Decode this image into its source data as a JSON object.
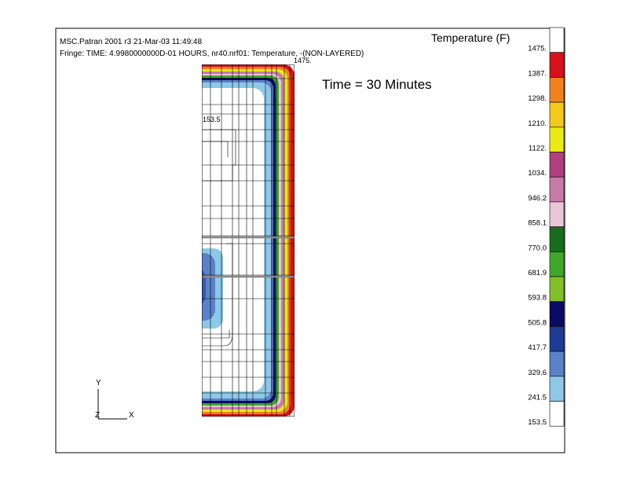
{
  "header": {
    "line1": "MSC.Patran 2001 r3 21-Mar-03 11:49:48",
    "line2": "Fringe: TIME:    4.9980000000D-01 HOURS, nr40.nrf01: Temperature, -(NON-LAYERED)"
  },
  "annotation": "Time = 30 Minutes",
  "max_label": "1475.",
  "min_label": "153.5",
  "triad": {
    "y": "Y",
    "z": "Z",
    "x": "X"
  },
  "legend": {
    "title": "Temperature (F)",
    "labels": [
      "1475.",
      "1387.",
      "1298.",
      "1210.",
      "1122.",
      "1034.",
      "946.2",
      "858.1",
      "770.0",
      "681.9",
      "593.8",
      "505.8",
      "417.7",
      "329.6",
      "241.5",
      "153.5"
    ],
    "colors": [
      "#ffffff",
      "#d7101a",
      "#f0821e",
      "#f4c81c",
      "#eaea14",
      "#b0407e",
      "#c77ba7",
      "#ebc6d8",
      "#196e1e",
      "#3ea82a",
      "#82c02a",
      "#0a0a64",
      "#1e3c96",
      "#5a82c8",
      "#8ec8e6",
      "#ffffff"
    ]
  }
}
